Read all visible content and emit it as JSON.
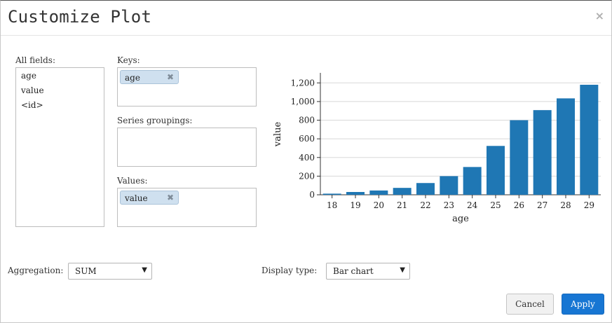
{
  "dialog": {
    "title": "Customize Plot",
    "close_glyph": "×"
  },
  "fields": {
    "all_label": "All fields:",
    "all_items": [
      "age",
      "value",
      "<id>"
    ],
    "keys_label": "Keys:",
    "keys_chip": "age",
    "series_label": "Series groupings:",
    "values_label": "Values:",
    "values_chip": "value",
    "chip_remove_glyph": "✖"
  },
  "controls": {
    "aggregation_label": "Aggregation:",
    "aggregation_value": "SUM",
    "display_label": "Display type:",
    "display_value": "Bar chart",
    "arrow_glyph": "▼"
  },
  "buttons": {
    "cancel": "Cancel",
    "apply": "Apply"
  },
  "chart_data": {
    "type": "bar",
    "categories": [
      "18",
      "19",
      "20",
      "21",
      "22",
      "23",
      "24",
      "25",
      "26",
      "27",
      "28",
      "29"
    ],
    "values": [
      12,
      30,
      46,
      74,
      126,
      200,
      298,
      524,
      800,
      908,
      1034,
      1180
    ],
    "xlabel": "age",
    "ylabel": "value",
    "ylim": [
      0,
      1300
    ],
    "yticks": [
      0,
      200,
      400,
      600,
      800,
      1000,
      1200
    ],
    "ytick_labels": [
      "0",
      "200",
      "400",
      "600",
      "800",
      "1,000",
      "1,200"
    ],
    "grid": true,
    "bar_color": "#1f77b4"
  }
}
